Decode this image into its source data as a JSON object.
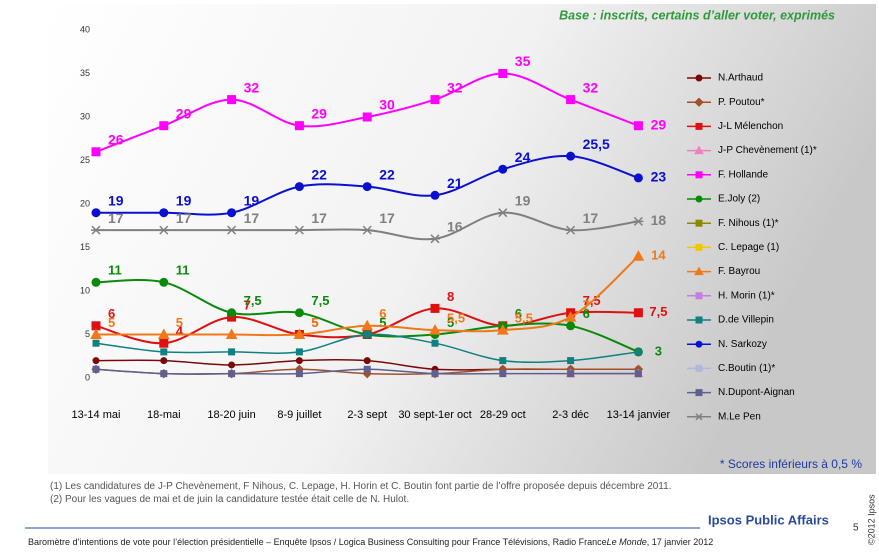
{
  "chart_data": {
    "type": "line",
    "subtitle": "Base : inscrits, certains d’aller voter, exprimés",
    "categories": [
      "13-14 mai",
      "18-mai",
      "18-20 juin",
      "8-9 juillet",
      "2-3 sept",
      "30 sept-1er oct",
      "28-29 oct",
      "2-3 déc",
      "13-14 janvier"
    ],
    "ylim": [
      0,
      40
    ],
    "yticks": [
      0,
      5,
      10,
      15,
      20,
      25,
      30,
      35,
      40
    ],
    "series": [
      {
        "name": "N.Arthaud",
        "color": "#7a0a0a",
        "marker": "circle",
        "values": [
          2,
          2,
          1.5,
          2,
          2,
          1,
          1,
          1,
          1
        ]
      },
      {
        "name": "P. Poutou*",
        "color": "#a0522d",
        "marker": "diamond",
        "values": [
          1,
          0.5,
          0.5,
          1,
          0.5,
          0.5,
          1,
          1,
          1
        ]
      },
      {
        "name": "J-L Mélenchon",
        "color": "#e01010",
        "marker": "square",
        "values": [
          6,
          4,
          7,
          5,
          5,
          8,
          6,
          7.5,
          7.5
        ],
        "value_labels": [
          "6",
          "4",
          "7",
          "5",
          null,
          "8",
          null,
          "7,5",
          "7,5"
        ]
      },
      {
        "name": "J-P Chevènement (1)*",
        "color": "#f080c0",
        "marker": "triangle",
        "values": [
          null,
          null,
          null,
          null,
          null,
          null,
          null,
          0.5,
          0.5
        ]
      },
      {
        "name": "F. Hollande",
        "color": "#ff00ff",
        "marker": "square",
        "values": [
          26,
          29,
          32,
          29,
          30,
          32,
          35,
          32,
          29
        ],
        "value_labels": [
          "26",
          "29",
          "32",
          "29",
          "30",
          "32",
          "35",
          "32",
          "29"
        ]
      },
      {
        "name": "E.Joly (2)",
        "color": "#0a8a0a",
        "marker": "circle",
        "values": [
          11,
          11,
          7.5,
          7.5,
          5,
          5,
          6,
          6,
          3
        ],
        "value_labels": [
          "11",
          "11",
          "7,5",
          "7,5",
          "5",
          "5",
          "6",
          "6",
          "3"
        ]
      },
      {
        "name": "F. Nihous (1)*",
        "color": "#8a8a00",
        "marker": "square",
        "values": [
          null,
          null,
          null,
          null,
          null,
          null,
          null,
          0.5,
          0.5
        ]
      },
      {
        "name": "C. Lepage (1)",
        "color": "#f0c800",
        "marker": "square",
        "values": [
          null,
          null,
          null,
          null,
          null,
          null,
          null,
          0.5,
          0.5
        ]
      },
      {
        "name": "F. Bayrou",
        "color": "#f07818",
        "marker": "triangle",
        "values": [
          5,
          5,
          5,
          5,
          6,
          5.5,
          5.5,
          7,
          14
        ],
        "value_labels": [
          "5",
          "5",
          null,
          "5",
          "6",
          "5,5",
          "5,5",
          "7",
          "14"
        ]
      },
      {
        "name": "H. Morin (1)*",
        "color": "#c080e0",
        "marker": "square",
        "values": [
          null,
          null,
          null,
          null,
          null,
          null,
          null,
          0.5,
          0.5
        ]
      },
      {
        "name": "D.de Villepin",
        "color": "#108080",
        "marker": "square",
        "values": [
          4,
          3,
          3,
          3,
          5,
          4,
          2,
          2,
          3
        ]
      },
      {
        "name": "N. Sarkozy",
        "color": "#0a10d0",
        "marker": "circle",
        "values": [
          19,
          19,
          19,
          22,
          22,
          21,
          24,
          25.5,
          23
        ],
        "value_labels": [
          "19",
          "19",
          "19",
          "22",
          "22",
          "21",
          "24",
          "25,5",
          "23"
        ]
      },
      {
        "name": "C.Boutin (1)*",
        "color": "#b0b8e0",
        "marker": "square",
        "values": [
          null,
          null,
          null,
          null,
          null,
          null,
          null,
          0.5,
          0.5
        ]
      },
      {
        "name": "N.Dupont-Aignan",
        "color": "#606090",
        "marker": "square",
        "values": [
          1,
          0.5,
          0.5,
          0.5,
          1,
          0.5,
          0.5,
          0.5,
          0.5
        ]
      },
      {
        "name": "M.Le Pen",
        "color": "#808080",
        "marker": "star",
        "values": [
          17,
          17,
          17,
          17,
          17,
          16,
          19,
          17,
          18
        ],
        "value_labels": [
          "17",
          "17",
          "17",
          "17",
          "17",
          "16",
          "19",
          "17",
          "18"
        ]
      }
    ]
  },
  "note": "* Scores inférieurs à 0,5 %",
  "footnotes": [
    "(1) Les candidatures de J-P Chevènement, F Nihous, C. Lepage, H. Horin et C. Boutin font partie de l’offre proposée depuis décembre 2011.",
    "(2) Pour les vagues de mai et de juin la candidature testée était celle de N. Hulot."
  ],
  "brand": "Ipsos Public Affairs",
  "footer": [
    "Baromètre d’intentions de vote pour l’élection présidentielle – Enquête Ipsos / Logica Business Consulting pour France Télévisions, Radio France",
    "Le Monde",
    ", 17 janvier 2012"
  ],
  "page_number": "5",
  "copyright": "©2012 Ipsos"
}
